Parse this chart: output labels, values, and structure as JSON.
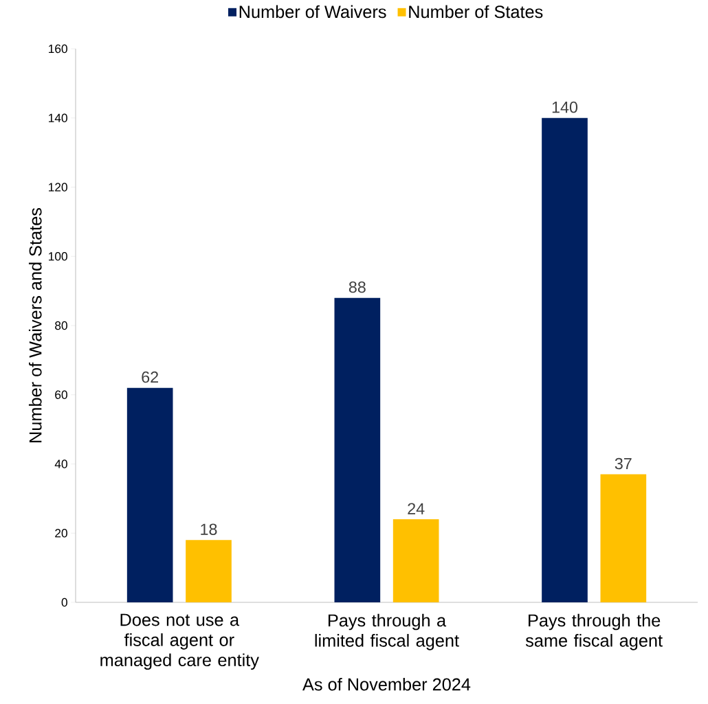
{
  "chart_data": {
    "type": "bar",
    "xlabel": "As of November 2024",
    "ylabel": "Number of Waivers and States",
    "categories": [
      "Does not use a fiscal agent or managed care entity",
      "Pays through a limited fiscal agent",
      "Pays through the same fiscal agent"
    ],
    "series": [
      {
        "name": "Number of Waivers",
        "color": "#002060",
        "values": [
          62,
          88,
          140
        ]
      },
      {
        "name": "Number of States",
        "color": "#ffc000",
        "values": [
          18,
          24,
          37
        ]
      }
    ],
    "ylim": [
      0,
      160
    ],
    "yticks": [
      0,
      20,
      40,
      60,
      80,
      100,
      120,
      140,
      160
    ],
    "grid": false,
    "legend": "top",
    "data_labels": true
  }
}
